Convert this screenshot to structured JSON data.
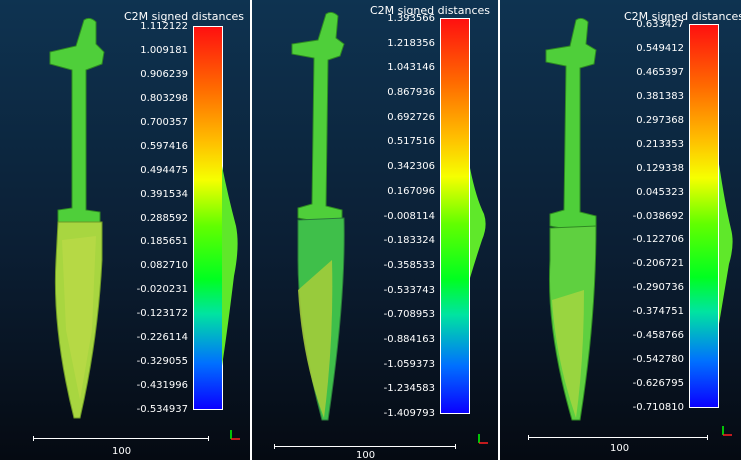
{
  "panels": [
    {
      "title": "C2M signed distances",
      "ticks": [
        "1.112122",
        "1.009181",
        "0.906239",
        "0.803298",
        "0.700357",
        "0.597416",
        "0.494475",
        "0.391534",
        "0.288592",
        "0.185651",
        "0.082710",
        "-0.020231",
        "-0.123172",
        "-0.226114",
        "-0.329055",
        "-0.431996",
        "-0.534937"
      ],
      "scale_label": "100"
    },
    {
      "title": "C2M signed distances",
      "ticks": [
        "1.393566",
        "1.218356",
        "1.043146",
        "0.867936",
        "0.692726",
        "0.517516",
        "0.342306",
        "0.167096",
        "-0.008114",
        "-0.183324",
        "-0.358533",
        "-0.533743",
        "-0.708953",
        "-0.884163",
        "-1.059373",
        "-1.234583",
        "-1.409793"
      ],
      "scale_label": "100"
    },
    {
      "title": "C2M signed distances",
      "ticks": [
        "0.633427",
        "0.549412",
        "0.465397",
        "0.381383",
        "0.297368",
        "0.213353",
        "0.129338",
        "0.045323",
        "-0.038692",
        "-0.122706",
        "-0.206721",
        "-0.290736",
        "-0.374751",
        "-0.458766",
        "-0.542780",
        "-0.626795",
        "-0.710810"
      ],
      "scale_label": "100"
    }
  ],
  "colors": {
    "dagger_handle": "#4fcf3a",
    "dagger_blade": "#a8d640",
    "histogram": "#5fe82a"
  }
}
